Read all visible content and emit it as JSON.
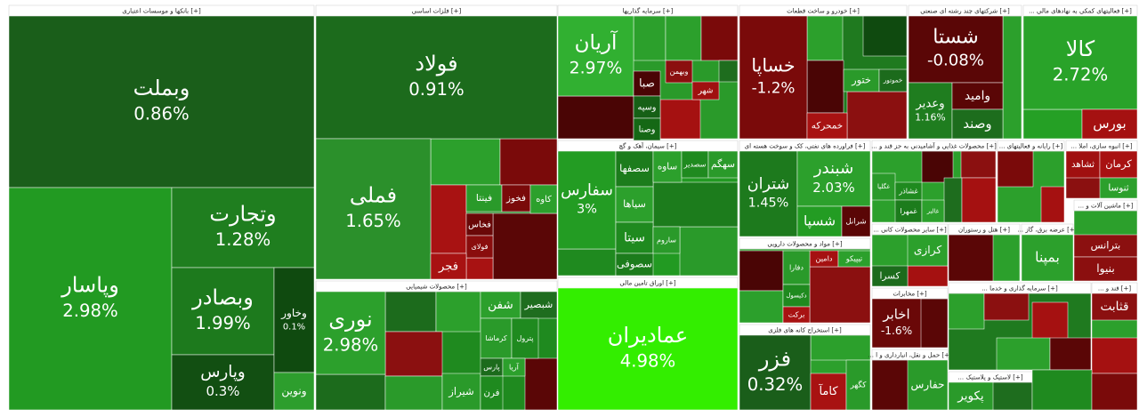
{
  "sectors": [
    {
      "title": "بانکها و موسسات اعتباری [+]",
      "tiles": [
        {
          "name": "وبملت",
          "change": "0.86%",
          "color": "#1a5e1a"
        },
        {
          "name": "وپاسار",
          "change": "2.98%",
          "color": "#229a22"
        },
        {
          "name": "وتجارت",
          "change": "1.28%",
          "color": "#1f7e1f"
        },
        {
          "name": "وبصادر",
          "change": "1.99%",
          "color": "#1d7a1d"
        },
        {
          "name": "وپارس",
          "change": "0.3%",
          "color": "#124f12"
        },
        {
          "name": "وخاور",
          "change": "0.1%",
          "color": "#0f4a0f"
        },
        {
          "name": "ونوین",
          "color": "#2d9e2d"
        }
      ]
    },
    {
      "title": "فلزات اساسی [+]",
      "tiles": [
        {
          "name": "فولاد",
          "change": "0.91%",
          "color": "#1c6b1c"
        },
        {
          "name": "فملی",
          "change": "1.65%",
          "color": "#2b902b"
        },
        {
          "name": "فینتا",
          "color": "#2a9a2a"
        },
        {
          "name": "فخوز",
          "color": "#7a0a0a"
        },
        {
          "name": "کاوه",
          "color": "#2ca02c"
        },
        {
          "name": "فخاس",
          "color": "#6a0808"
        },
        {
          "name": "فولای",
          "color": "#8a0d0d"
        },
        {
          "name": "فجر",
          "color": "#a81212"
        }
      ]
    },
    {
      "title": "سرمایه گذاریها [+]",
      "tiles": [
        {
          "name": "آریان",
          "change": "2.97%",
          "color": "#31b031"
        },
        {
          "name": "وبهمن",
          "color": "#8b0f0f"
        },
        {
          "name": "صبا",
          "color": "#4a0505"
        },
        {
          "name": "وسپه",
          "color": "#166016"
        },
        {
          "name": "وصنا",
          "color": "#156815"
        },
        {
          "name": "شهر",
          "color": "#a01010"
        }
      ]
    },
    {
      "title": "خودرو و ساخت قطعات [+]",
      "tiles": [
        {
          "name": "خساپا",
          "change": "-1.2%",
          "color": "#7a0a0a"
        },
        {
          "name": "ختور",
          "color": "#2a9a2a"
        },
        {
          "name": "خموتور",
          "color": "#1c6b1c"
        },
        {
          "name": "خمحرکه",
          "color": "#a81212"
        }
      ]
    },
    {
      "title": "شرکتهای چند رشته ای صنعتی [+]",
      "tiles": [
        {
          "name": "شستا",
          "change": "-0.08%",
          "color": "#5a0606"
        },
        {
          "name": "وعدیر",
          "change": "1.16%",
          "color": "#1f7d1f"
        },
        {
          "name": "وامید",
          "color": "#5a0606"
        },
        {
          "name": "وصند",
          "color": "#1d6d1d"
        }
      ]
    },
    {
      "title": "... فعالیتهای کمکی به نهادهای مالی [+]",
      "tiles": [
        {
          "name": "کالا",
          "change": "2.72%",
          "color": "#29a329"
        },
        {
          "name": "بورس",
          "color": "#a51111"
        }
      ]
    },
    {
      "title": "سیمان، آهک و گچ [+]",
      "tiles": [
        {
          "name": "سفارس",
          "change": "3%",
          "color": "#239c23"
        },
        {
          "name": "سصفها",
          "color": "#1c7c1c"
        },
        {
          "name": "ساوه",
          "color": "#2ca02c"
        },
        {
          "name": "سصدیر",
          "color": "#1f8a1f"
        },
        {
          "name": "سهگم",
          "color": "#2a9a2a"
        },
        {
          "name": "سیاها",
          "color": "#2ca02c"
        },
        {
          "name": "سیتا",
          "color": "#1f8a1f"
        },
        {
          "name": "ساروم",
          "color": "#2a9a2a"
        },
        {
          "name": "سصوفی",
          "color": "#1c7c1c"
        }
      ]
    },
    {
      "title": "اوراق تامین مالی [+]",
      "tiles": [
        {
          "name": "عمادیران",
          "change": "4.98%",
          "color": "#33ee00"
        }
      ]
    },
    {
      "title": "فراورده های نفتی، کک و سوخت هسته ای [+]",
      "tiles": [
        {
          "name": "شتران",
          "change": "1.45%",
          "color": "#1d7a1d"
        },
        {
          "name": "شبندر",
          "change": "2.03%",
          "color": "#2ca02c"
        },
        {
          "name": "شسپا",
          "color": "#239c23"
        },
        {
          "name": "شرانل",
          "color": "#5a0606"
        }
      ]
    },
    {
      "title": "مواد و محصولات دارویی [+]",
      "tiles": [
        {
          "name": "دامین",
          "color": "#a51111"
        },
        {
          "name": "تیپیکو",
          "color": "#2ca02c"
        },
        {
          "name": "دفارا",
          "color": "#2a9a2a"
        },
        {
          "name": "دکیسول",
          "color": "#1f8a1f"
        },
        {
          "name": "برکت",
          "color": "#a81212"
        }
      ]
    },
    {
      "title": "استخراج کانه های فلزی [+]",
      "tiles": [
        {
          "name": "فزر",
          "change": "0.32%",
          "color": "#1a5e1a"
        },
        {
          "name": "کامآ",
          "color": "#a81212"
        },
        {
          "name": "کگهر",
          "color": "#2a9a2a"
        }
      ]
    },
    {
      "title": "... محصولات غذایی و آشامیدنی به جز قند و [+]",
      "tiles": [
        {
          "name": "غگلپا",
          "color": "#2a9a2a"
        },
        {
          "name": "غشاذر",
          "color": "#1f8a1f"
        },
        {
          "name": "غمهرا",
          "color": "#1c7c1c"
        },
        {
          "name": "غالبر",
          "color": "#2ca02c"
        }
      ]
    },
    {
      "title": "... رایانه و فعالیتهای [+]",
      "tiles": []
    },
    {
      "title": "... انبوه سازی، املا [+]",
      "tiles": [
        {
          "name": "ثشاهد",
          "color": "#a01010"
        },
        {
          "name": "کرمان",
          "color": "#a81212"
        },
        {
          "name": "ثنوسا",
          "color": "#2ca02c"
        }
      ]
    },
    {
      "title": "... سایر محصولات کانی [+]",
      "tiles": [
        {
          "name": "کرازی",
          "color": "#2ca02c"
        },
        {
          "name": "کسرا",
          "color": "#1c6b1c"
        }
      ]
    },
    {
      "title": "هتل و رستوران [+]",
      "tiles": []
    },
    {
      "title": "... عرضه برق، گاز [+]",
      "tiles": [
        {
          "name": "بمپنا",
          "color": "#2ca02c"
        }
      ]
    },
    {
      "title": "... ماشین آلات و [+]",
      "tiles": [
        {
          "name": "بترانس",
          "color": "#8b1010"
        },
        {
          "name": "بنیوا",
          "color": "#8b0f0f"
        }
      ]
    },
    {
      "title": "مخابرات [+]",
      "tiles": [
        {
          "name": "اخابر",
          "change": "-1.6%",
          "color": "#6a0808"
        }
      ]
    },
    {
      "title": "... حمل و نقل، انبارداری و ا [+]",
      "tiles": [
        {
          "name": "حفارس",
          "color": "#2a9a2a"
        }
      ]
    },
    {
      "title": "... لاستیک و پلاستیک [+]",
      "tiles": [
        {
          "name": "پکویر",
          "color": "#2a9a2a"
        }
      ]
    },
    {
      "title": "محصولات شیمیایی [+]",
      "tiles": [
        {
          "name": "نوری",
          "change": "2.98%",
          "color": "#2ca02c"
        },
        {
          "name": "شفن",
          "color": "#2ca02c"
        },
        {
          "name": "شبصیر",
          "color": "#1f6d1f"
        },
        {
          "name": "کرماشا",
          "color": "#2a9a2a"
        },
        {
          "name": "پترول",
          "color": "#1f8a1f"
        },
        {
          "name": "شیراز",
          "color": "#2a9a2a"
        },
        {
          "name": "پارس",
          "color": "#1c6b1c"
        },
        {
          "name": "آریا",
          "color": "#2ca02c"
        },
        {
          "name": "فرن",
          "color": "#1f8a1f"
        }
      ]
    },
    {
      "title": "... سرمایه گذاری و خدما [+]",
      "tiles": []
    },
    {
      "title": "... قند و [+]",
      "tiles": [
        {
          "name": "قثابت",
          "color": "#8b1010"
        }
      ]
    }
  ]
}
